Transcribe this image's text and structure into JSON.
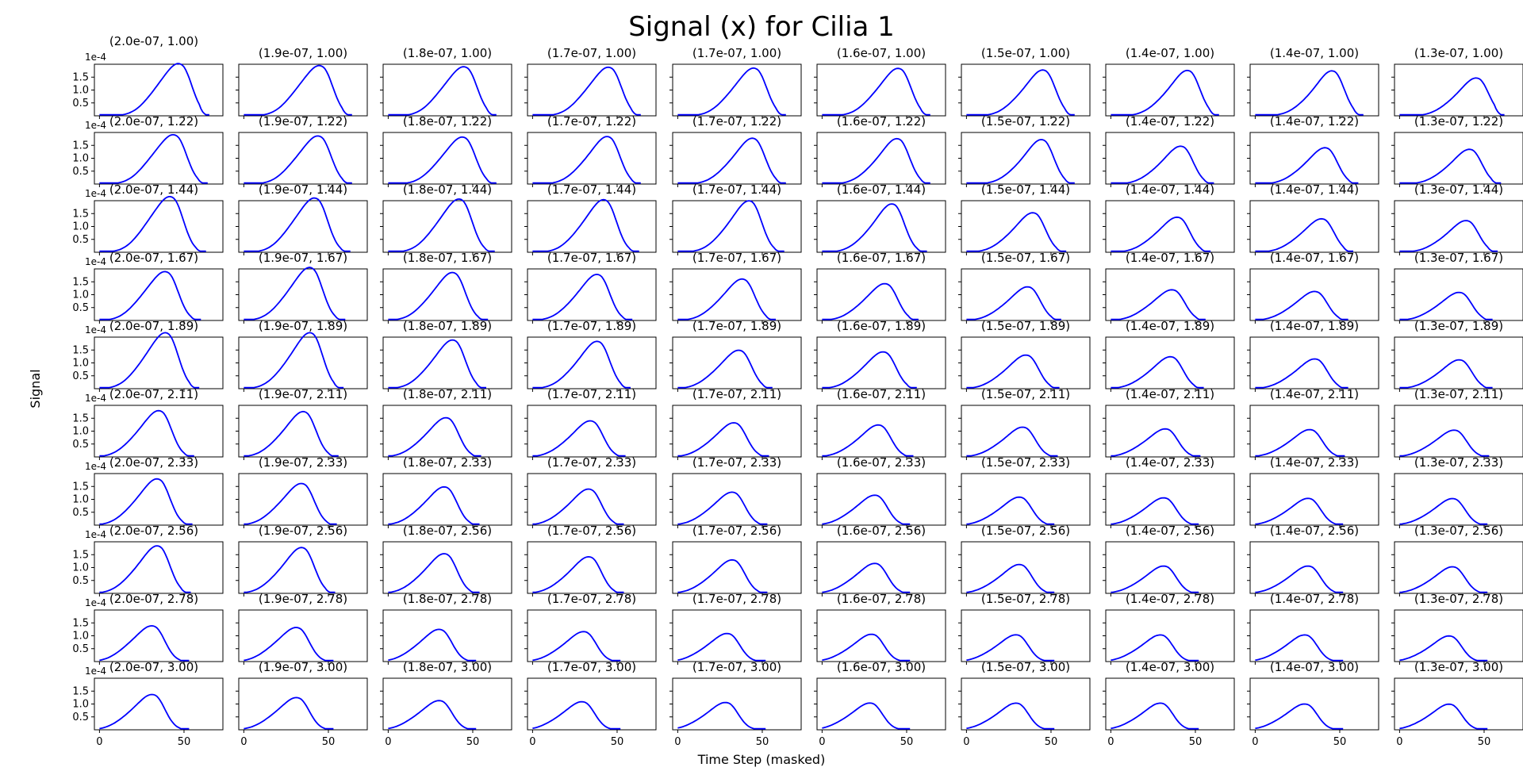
{
  "chart_data": {
    "type": "line",
    "title": "Signal (x) for Cilia 1",
    "xlabel": "Time Step (masked)",
    "ylabel": "Signal",
    "grid": false,
    "line_color": "#0000ff",
    "y_offset_label": "1e-4",
    "xlim": [
      -3,
      73
    ],
    "ylim": [
      0,
      0.0002
    ],
    "x_ticks": [
      0,
      50
    ],
    "y_ticks": [
      5e-05,
      0.0001,
      0.00015
    ],
    "y_tick_labels": [
      "0.5",
      "1.0",
      "1.5"
    ],
    "column_labels": [
      "2.0e-07",
      "1.9e-07",
      "1.8e-07",
      "1.7e-07",
      "1.7e-07",
      "1.6e-07",
      "1.5e-07",
      "1.4e-07",
      "1.4e-07",
      "1.3e-07"
    ],
    "row_labels": [
      "1.00",
      "1.22",
      "1.44",
      "1.67",
      "1.89",
      "2.11",
      "2.33",
      "2.56",
      "2.78",
      "3.00"
    ],
    "panels": [
      [
        {
          "peak_x": 49,
          "peak_y": 0.000165,
          "shoulder_y": 0.000125,
          "end_x": 65
        },
        {
          "peak_x": 47,
          "peak_y": 0.000158,
          "shoulder_y": 0.000122,
          "end_x": 64
        },
        {
          "peak_x": 47,
          "peak_y": 0.000155,
          "shoulder_y": 0.000118,
          "end_x": 64
        },
        {
          "peak_x": 47,
          "peak_y": 0.000155,
          "shoulder_y": 0.000112,
          "end_x": 64
        },
        {
          "peak_x": 47,
          "peak_y": 0.000153,
          "shoulder_y": 0.000108,
          "end_x": 64
        },
        {
          "peak_x": 47,
          "peak_y": 0.000153,
          "shoulder_y": 0.000105,
          "end_x": 64
        },
        {
          "peak_x": 47,
          "peak_y": 0.00015,
          "shoulder_y": 9.5e-05,
          "end_x": 64
        },
        {
          "peak_x": 47,
          "peak_y": 0.00015,
          "shoulder_y": 9e-05,
          "end_x": 64
        },
        {
          "peak_x": 47,
          "peak_y": 0.00015,
          "shoulder_y": 8.5e-05,
          "end_x": 64
        },
        {
          "peak_x": 47,
          "peak_y": 0.000125,
          "shoulder_y": 7.5e-05,
          "end_x": 62
        }
      ],
      [
        {
          "peak_x": 46,
          "peak_y": 0.000155,
          "shoulder_y": 0.00012,
          "end_x": 64
        },
        {
          "peak_x": 46,
          "peak_y": 0.000153,
          "shoulder_y": 0.000112,
          "end_x": 64
        },
        {
          "peak_x": 46,
          "peak_y": 0.00015,
          "shoulder_y": 0.000108,
          "end_x": 64
        },
        {
          "peak_x": 46,
          "peak_y": 0.000155,
          "shoulder_y": 0.0001,
          "end_x": 64
        },
        {
          "peak_x": 46,
          "peak_y": 0.00015,
          "shoulder_y": 9.5e-05,
          "end_x": 64
        },
        {
          "peak_x": 46,
          "peak_y": 0.00015,
          "shoulder_y": 9e-05,
          "end_x": 64
        },
        {
          "peak_x": 46,
          "peak_y": 0.000148,
          "shoulder_y": 8.5e-05,
          "end_x": 64
        },
        {
          "peak_x": 43,
          "peak_y": 0.000125,
          "shoulder_y": 7.5e-05,
          "end_x": 61
        },
        {
          "peak_x": 43,
          "peak_y": 0.00012,
          "shoulder_y": 7.2e-05,
          "end_x": 61
        },
        {
          "peak_x": 43,
          "peak_y": 0.000115,
          "shoulder_y": 6.8e-05,
          "end_x": 60
        }
      ],
      [
        {
          "peak_x": 44,
          "peak_y": 0.000175,
          "shoulder_y": 0.000135,
          "end_x": 63
        },
        {
          "peak_x": 44,
          "peak_y": 0.000172,
          "shoulder_y": 0.000128,
          "end_x": 63
        },
        {
          "peak_x": 44,
          "peak_y": 0.00017,
          "shoulder_y": 0.000122,
          "end_x": 63
        },
        {
          "peak_x": 44,
          "peak_y": 0.00017,
          "shoulder_y": 0.000115,
          "end_x": 63
        },
        {
          "peak_x": 44,
          "peak_y": 0.000168,
          "shoulder_y": 0.000108,
          "end_x": 63
        },
        {
          "peak_x": 43,
          "peak_y": 0.00016,
          "shoulder_y": 9.5e-05,
          "end_x": 62
        },
        {
          "peak_x": 41,
          "peak_y": 0.00013,
          "shoulder_y": 8e-05,
          "end_x": 59
        },
        {
          "peak_x": 41,
          "peak_y": 0.000115,
          "shoulder_y": 7.2e-05,
          "end_x": 59
        },
        {
          "peak_x": 41,
          "peak_y": 0.00011,
          "shoulder_y": 6.8e-05,
          "end_x": 58
        },
        {
          "peak_x": 41,
          "peak_y": 0.000105,
          "shoulder_y": 6.2e-05,
          "end_x": 58
        }
      ],
      [
        {
          "peak_x": 41,
          "peak_y": 0.000155,
          "shoulder_y": 0.000115,
          "end_x": 60
        },
        {
          "peak_x": 41,
          "peak_y": 0.00017,
          "shoulder_y": 0.00012,
          "end_x": 60
        },
        {
          "peak_x": 40,
          "peak_y": 0.000155,
          "shoulder_y": 0.000105,
          "end_x": 59
        },
        {
          "peak_x": 40,
          "peak_y": 0.00015,
          "shoulder_y": 9.8e-05,
          "end_x": 59
        },
        {
          "peak_x": 40,
          "peak_y": 0.000135,
          "shoulder_y": 8.8e-05,
          "end_x": 58
        },
        {
          "peak_x": 39,
          "peak_y": 0.00012,
          "shoulder_y": 7.8e-05,
          "end_x": 57
        },
        {
          "peak_x": 38,
          "peak_y": 0.00011,
          "shoulder_y": 7e-05,
          "end_x": 56
        },
        {
          "peak_x": 38,
          "peak_y": 0.0001,
          "shoulder_y": 6.5e-05,
          "end_x": 56
        },
        {
          "peak_x": 37,
          "peak_y": 9.5e-05,
          "shoulder_y": 6e-05,
          "end_x": 55
        },
        {
          "peak_x": 37,
          "peak_y": 9.2e-05,
          "shoulder_y": 5.8e-05,
          "end_x": 55
        }
      ],
      [
        {
          "peak_x": 41,
          "peak_y": 0.00018,
          "shoulder_y": 0.000125,
          "end_x": 59
        },
        {
          "peak_x": 41,
          "peak_y": 0.000182,
          "shoulder_y": 0.00012,
          "end_x": 59
        },
        {
          "peak_x": 40,
          "peak_y": 0.000158,
          "shoulder_y": 0.000105,
          "end_x": 58
        },
        {
          "peak_x": 40,
          "peak_y": 0.000155,
          "shoulder_y": 9.8e-05,
          "end_x": 58
        },
        {
          "peak_x": 38,
          "peak_y": 0.000125,
          "shoulder_y": 8.2e-05,
          "end_x": 56
        },
        {
          "peak_x": 38,
          "peak_y": 0.00012,
          "shoulder_y": 7.8e-05,
          "end_x": 56
        },
        {
          "peak_x": 37,
          "peak_y": 0.00011,
          "shoulder_y": 7e-05,
          "end_x": 55
        },
        {
          "peak_x": 37,
          "peak_y": 0.000105,
          "shoulder_y": 6.5e-05,
          "end_x": 55
        },
        {
          "peak_x": 37,
          "peak_y": 9.8e-05,
          "shoulder_y": 6e-05,
          "end_x": 55
        },
        {
          "peak_x": 37,
          "peak_y": 9.5e-05,
          "shoulder_y": 5.8e-05,
          "end_x": 55
        }
      ],
      [
        {
          "peak_x": 37,
          "peak_y": 0.00015,
          "shoulder_y": 0.0001,
          "end_x": 56
        },
        {
          "peak_x": 37,
          "peak_y": 0.000148,
          "shoulder_y": 9.5e-05,
          "end_x": 56
        },
        {
          "peak_x": 36,
          "peak_y": 0.000128,
          "shoulder_y": 8.2e-05,
          "end_x": 55
        },
        {
          "peak_x": 36,
          "peak_y": 0.000118,
          "shoulder_y": 7.5e-05,
          "end_x": 55
        },
        {
          "peak_x": 35,
          "peak_y": 0.000112,
          "shoulder_y": 7e-05,
          "end_x": 54
        },
        {
          "peak_x": 35,
          "peak_y": 0.000105,
          "shoulder_y": 6.5e-05,
          "end_x": 54
        },
        {
          "peak_x": 35,
          "peak_y": 9.8e-05,
          "shoulder_y": 6e-05,
          "end_x": 54
        },
        {
          "peak_x": 34,
          "peak_y": 9.2e-05,
          "shoulder_y": 5.7e-05,
          "end_x": 53
        },
        {
          "peak_x": 34,
          "peak_y": 9e-05,
          "shoulder_y": 5.5e-05,
          "end_x": 53
        },
        {
          "peak_x": 34,
          "peak_y": 8.8e-05,
          "shoulder_y": 5.4e-05,
          "end_x": 53
        }
      ],
      [
        {
          "peak_x": 36,
          "peak_y": 0.00015,
          "shoulder_y": 0.0001,
          "end_x": 55
        },
        {
          "peak_x": 36,
          "peak_y": 0.000135,
          "shoulder_y": 9e-05,
          "end_x": 55
        },
        {
          "peak_x": 35,
          "peak_y": 0.000125,
          "shoulder_y": 8e-05,
          "end_x": 54
        },
        {
          "peak_x": 35,
          "peak_y": 0.000118,
          "shoulder_y": 7.5e-05,
          "end_x": 54
        },
        {
          "peak_x": 34,
          "peak_y": 0.000108,
          "shoulder_y": 6.8e-05,
          "end_x": 53
        },
        {
          "peak_x": 33,
          "peak_y": 9.8e-05,
          "shoulder_y": 6.2e-05,
          "end_x": 52
        },
        {
          "peak_x": 33,
          "peak_y": 9.2e-05,
          "shoulder_y": 5.7e-05,
          "end_x": 52
        },
        {
          "peak_x": 33,
          "peak_y": 9e-05,
          "shoulder_y": 5.5e-05,
          "end_x": 52
        },
        {
          "peak_x": 33,
          "peak_y": 8.8e-05,
          "shoulder_y": 5.4e-05,
          "end_x": 52
        },
        {
          "peak_x": 33,
          "peak_y": 8.8e-05,
          "shoulder_y": 5.2e-05,
          "end_x": 52
        }
      ],
      [
        {
          "peak_x": 36,
          "peak_y": 0.000155,
          "shoulder_y": 0.0001,
          "end_x": 54
        },
        {
          "peak_x": 36,
          "peak_y": 0.00015,
          "shoulder_y": 9.5e-05,
          "end_x": 54
        },
        {
          "peak_x": 35,
          "peak_y": 0.00013,
          "shoulder_y": 8.2e-05,
          "end_x": 54
        },
        {
          "peak_x": 35,
          "peak_y": 0.00012,
          "shoulder_y": 7.5e-05,
          "end_x": 54
        },
        {
          "peak_x": 34,
          "peak_y": 0.00011,
          "shoulder_y": 6.8e-05,
          "end_x": 53
        },
        {
          "peak_x": 33,
          "peak_y": 9.8e-05,
          "shoulder_y": 6.2e-05,
          "end_x": 52
        },
        {
          "peak_x": 33,
          "peak_y": 9.5e-05,
          "shoulder_y": 5.8e-05,
          "end_x": 52
        },
        {
          "peak_x": 33,
          "peak_y": 9e-05,
          "shoulder_y": 5.5e-05,
          "end_x": 52
        },
        {
          "peak_x": 33,
          "peak_y": 9e-05,
          "shoulder_y": 5.5e-05,
          "end_x": 52
        },
        {
          "peak_x": 33,
          "peak_y": 8.8e-05,
          "shoulder_y": 5.2e-05,
          "end_x": 52
        }
      ],
      [
        {
          "peak_x": 33,
          "peak_y": 0.000115,
          "shoulder_y": 8e-05,
          "end_x": 53
        },
        {
          "peak_x": 33,
          "peak_y": 0.00011,
          "shoulder_y": 7.5e-05,
          "end_x": 53
        },
        {
          "peak_x": 32,
          "peak_y": 0.000105,
          "shoulder_y": 6.8e-05,
          "end_x": 52
        },
        {
          "peak_x": 32,
          "peak_y": 9.8e-05,
          "shoulder_y": 6.2e-05,
          "end_x": 52
        },
        {
          "peak_x": 31,
          "peak_y": 9.2e-05,
          "shoulder_y": 5.8e-05,
          "end_x": 52
        },
        {
          "peak_x": 31,
          "peak_y": 9e-05,
          "shoulder_y": 5.5e-05,
          "end_x": 52
        },
        {
          "peak_x": 31,
          "peak_y": 8.8e-05,
          "shoulder_y": 5.4e-05,
          "end_x": 52
        },
        {
          "peak_x": 31,
          "peak_y": 8.8e-05,
          "shoulder_y": 5.3e-05,
          "end_x": 52
        },
        {
          "peak_x": 31,
          "peak_y": 8.8e-05,
          "shoulder_y": 5.3e-05,
          "end_x": 52
        },
        {
          "peak_x": 31,
          "peak_y": 8.5e-05,
          "shoulder_y": 5e-05,
          "end_x": 52
        }
      ],
      [
        {
          "peak_x": 33,
          "peak_y": 0.000115,
          "shoulder_y": 7.5e-05,
          "end_x": 53
        },
        {
          "peak_x": 33,
          "peak_y": 0.000105,
          "shoulder_y": 6.8e-05,
          "end_x": 53
        },
        {
          "peak_x": 32,
          "peak_y": 9.5e-05,
          "shoulder_y": 6.2e-05,
          "end_x": 52
        },
        {
          "peak_x": 31,
          "peak_y": 9.2e-05,
          "shoulder_y": 5.8e-05,
          "end_x": 52
        },
        {
          "peak_x": 30,
          "peak_y": 9e-05,
          "shoulder_y": 5.5e-05,
          "end_x": 52
        },
        {
          "peak_x": 30,
          "peak_y": 8.8e-05,
          "shoulder_y": 5.4e-05,
          "end_x": 52
        },
        {
          "peak_x": 31,
          "peak_y": 8.8e-05,
          "shoulder_y": 5.3e-05,
          "end_x": 52
        },
        {
          "peak_x": 31,
          "peak_y": 8.8e-05,
          "shoulder_y": 5.3e-05,
          "end_x": 52
        },
        {
          "peak_x": 31,
          "peak_y": 8.5e-05,
          "shoulder_y": 5.2e-05,
          "end_x": 52
        },
        {
          "peak_x": 31,
          "peak_y": 8.5e-05,
          "shoulder_y": 5e-05,
          "end_x": 52
        }
      ]
    ]
  }
}
